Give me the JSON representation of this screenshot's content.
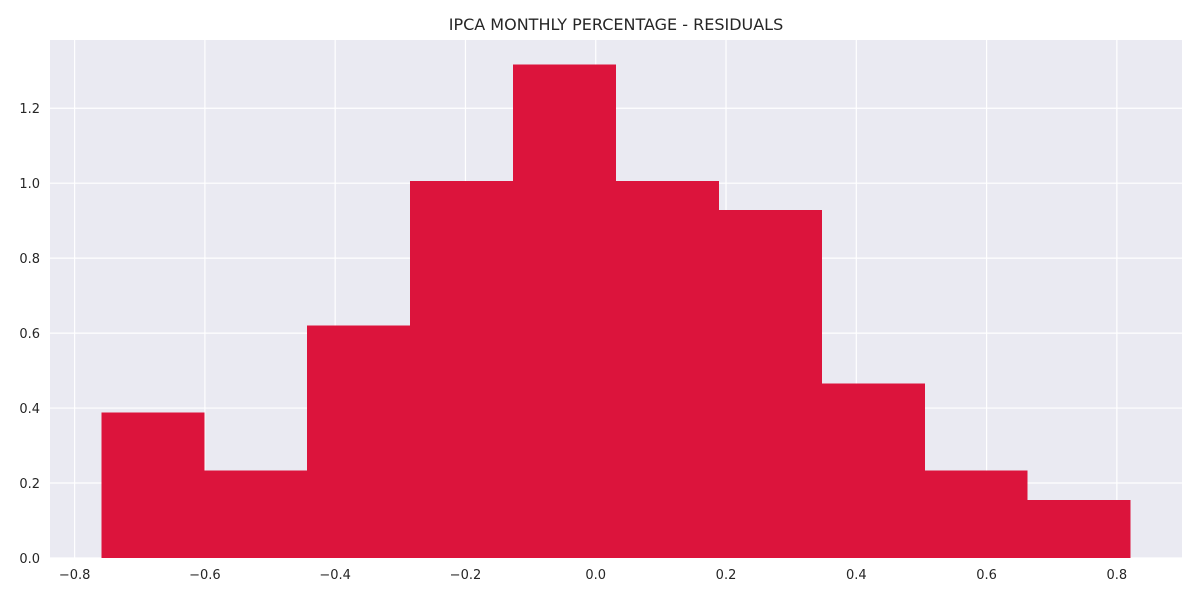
{
  "chart_data": {
    "type": "bar",
    "title": "IPCA MONTHLY PERCENTAGE - RESIDUALS",
    "xlabel": "",
    "ylabel": "",
    "bins": [
      {
        "start": -0.7589,
        "end": -0.6009,
        "value": 0.388
      },
      {
        "start": -0.6009,
        "end": -0.4429,
        "value": 0.233
      },
      {
        "start": -0.4429,
        "end": -0.2849,
        "value": 0.62
      },
      {
        "start": -0.2849,
        "end": -0.1269,
        "value": 1.006
      },
      {
        "start": -0.1269,
        "end": 0.0311,
        "value": 1.316
      },
      {
        "start": 0.0311,
        "end": 0.1891,
        "value": 1.006
      },
      {
        "start": 0.1891,
        "end": 0.3471,
        "value": 0.929
      },
      {
        "start": 0.3471,
        "end": 0.5051,
        "value": 0.465
      },
      {
        "start": 0.5051,
        "end": 0.6631,
        "value": 0.233
      },
      {
        "start": 0.6631,
        "end": 0.8211,
        "value": 0.155
      }
    ],
    "xlim": [
      -0.8378,
      0.9
    ],
    "ylim": [
      0,
      1.382
    ],
    "xticks": [
      {
        "value": -0.8,
        "label": "−0.8"
      },
      {
        "value": -0.6,
        "label": "−0.6"
      },
      {
        "value": -0.4,
        "label": "−0.4"
      },
      {
        "value": -0.2,
        "label": "−0.2"
      },
      {
        "value": 0.0,
        "label": "0.0"
      },
      {
        "value": 0.2,
        "label": "0.2"
      },
      {
        "value": 0.4,
        "label": "0.4"
      },
      {
        "value": 0.6,
        "label": "0.6"
      },
      {
        "value": 0.8,
        "label": "0.8"
      }
    ],
    "yticks": [
      {
        "value": 0.0,
        "label": "0.0"
      },
      {
        "value": 0.2,
        "label": "0.2"
      },
      {
        "value": 0.4,
        "label": "0.4"
      },
      {
        "value": 0.6,
        "label": "0.6"
      },
      {
        "value": 0.8,
        "label": "0.8"
      },
      {
        "value": 1.0,
        "label": "1.0"
      },
      {
        "value": 1.2,
        "label": "1.2"
      }
    ],
    "grid": true,
    "colors": {
      "bar": "#dc143c",
      "plot_background": "#eaeaf2",
      "grid": "#ffffff",
      "text": "#262626"
    }
  }
}
